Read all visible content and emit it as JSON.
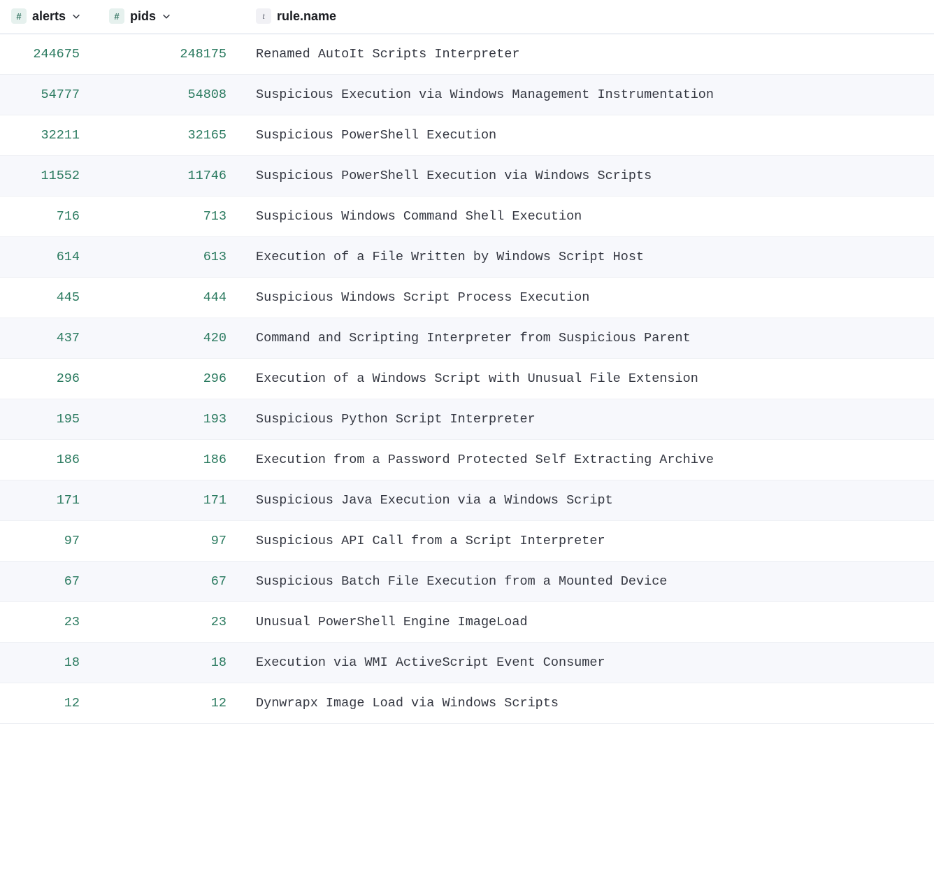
{
  "columns": {
    "alerts": {
      "label": "alerts",
      "type": "number",
      "sortable": true
    },
    "pids": {
      "label": "pids",
      "type": "number",
      "sortable": true
    },
    "rule_name": {
      "label": "rule.name",
      "type": "text",
      "sortable": false
    }
  },
  "type_badges": {
    "number": "#",
    "text": "t"
  },
  "colors": {
    "number_badge_bg": "#e6f1ee",
    "number_badge_fg": "#387765",
    "text_badge_bg": "#f1f1f5",
    "text_badge_fg": "#6a6f7b",
    "cell_number_color": "#2a7a5f",
    "cell_text_color": "#343741",
    "row_even_bg": "#ffffff",
    "row_odd_bg": "#f7f8fc",
    "border_color": "#d3dae6",
    "row_border_color": "#eef0f4"
  },
  "rows": [
    {
      "alerts": "244675",
      "pids": "248175",
      "rule_name": "Renamed AutoIt Scripts Interpreter"
    },
    {
      "alerts": "54777",
      "pids": "54808",
      "rule_name": "Suspicious Execution via Windows Management Instrumentation"
    },
    {
      "alerts": "32211",
      "pids": "32165",
      "rule_name": "Suspicious PowerShell Execution"
    },
    {
      "alerts": "11552",
      "pids": "11746",
      "rule_name": "Suspicious PowerShell Execution via Windows Scripts"
    },
    {
      "alerts": "716",
      "pids": "713",
      "rule_name": "Suspicious Windows Command Shell Execution"
    },
    {
      "alerts": "614",
      "pids": "613",
      "rule_name": "Execution of a File Written by Windows Script Host"
    },
    {
      "alerts": "445",
      "pids": "444",
      "rule_name": "Suspicious Windows Script Process Execution"
    },
    {
      "alerts": "437",
      "pids": "420",
      "rule_name": "Command and Scripting Interpreter from Suspicious Parent"
    },
    {
      "alerts": "296",
      "pids": "296",
      "rule_name": "Execution of a Windows Script with Unusual File Extension"
    },
    {
      "alerts": "195",
      "pids": "193",
      "rule_name": "Suspicious Python Script Interpreter"
    },
    {
      "alerts": "186",
      "pids": "186",
      "rule_name": "Execution from a Password Protected Self Extracting Archive"
    },
    {
      "alerts": "171",
      "pids": "171",
      "rule_name": "Suspicious Java Execution via a Windows Script"
    },
    {
      "alerts": "97",
      "pids": "97",
      "rule_name": "Suspicious API Call from a Script Interpreter"
    },
    {
      "alerts": "67",
      "pids": "67",
      "rule_name": "Suspicious Batch File Execution from a Mounted Device"
    },
    {
      "alerts": "23",
      "pids": "23",
      "rule_name": "Unusual PowerShell Engine ImageLoad"
    },
    {
      "alerts": "18",
      "pids": "18",
      "rule_name": "Execution via WMI ActiveScript Event Consumer"
    },
    {
      "alerts": "12",
      "pids": "12",
      "rule_name": "Dynwrapx Image Load via Windows Scripts"
    }
  ]
}
